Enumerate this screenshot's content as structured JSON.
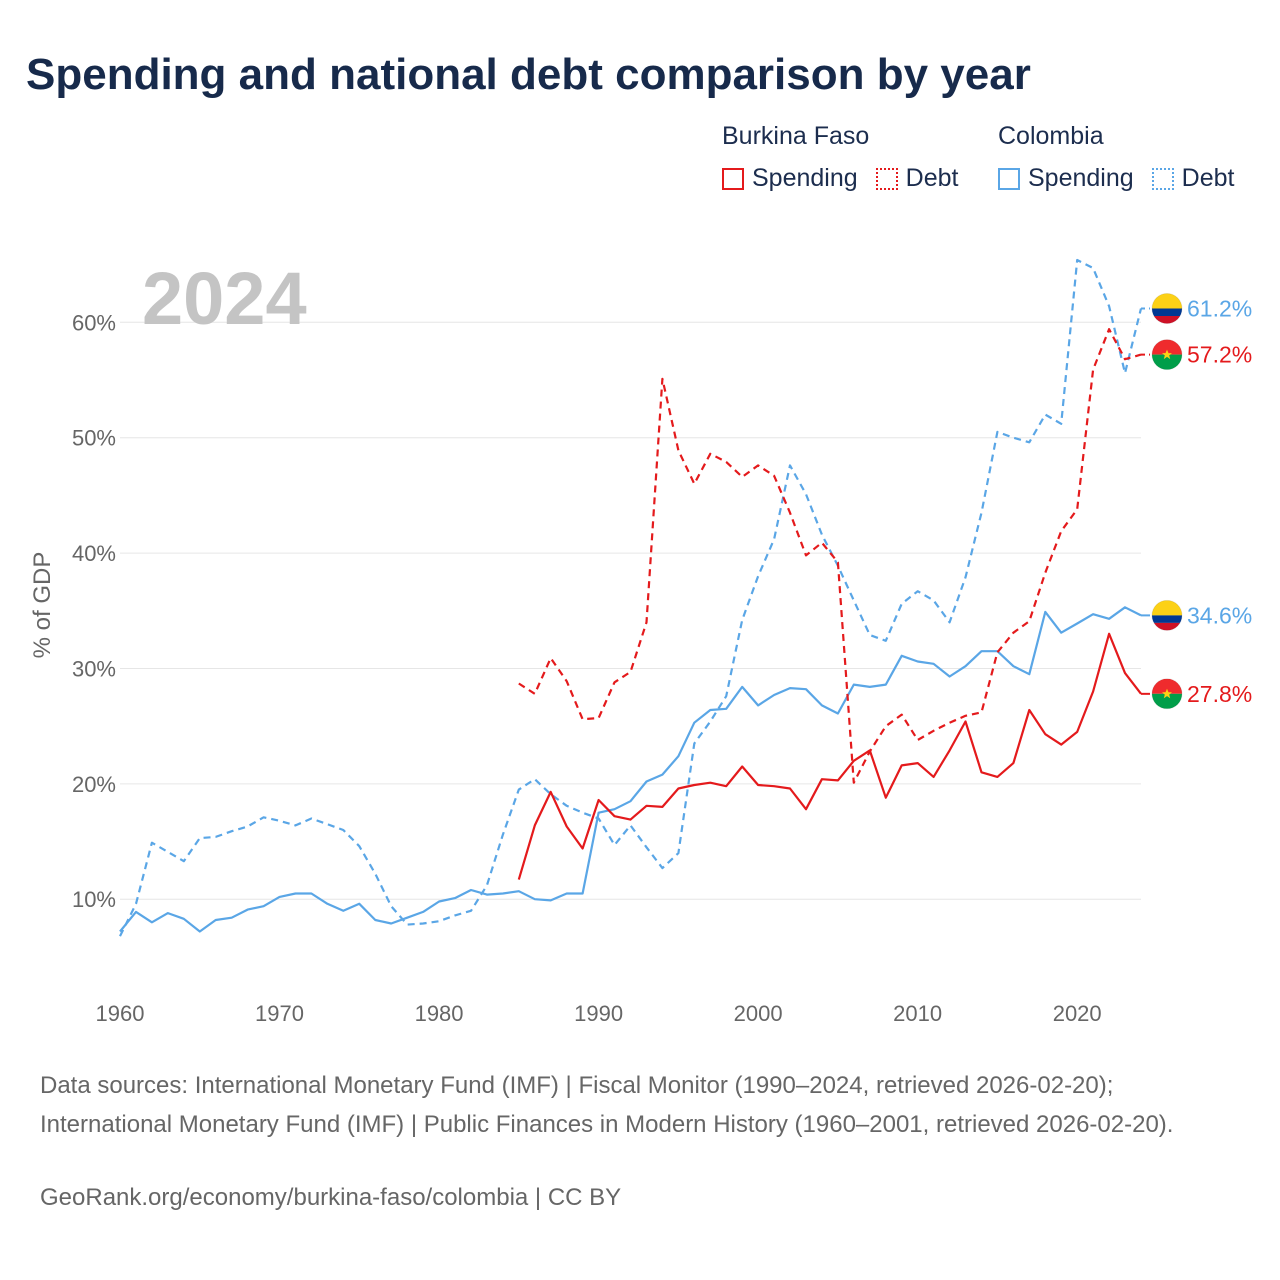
{
  "chart_data": {
    "type": "line",
    "title": "Spending and national debt comparison by year",
    "year_label": "2024",
    "ylabel": "% of GDP",
    "xlim": [
      1960,
      2024
    ],
    "ylim": [
      3,
      68
    ],
    "x_ticks": [
      1960,
      1970,
      1980,
      1990,
      2000,
      2010,
      2020
    ],
    "y_ticks": [
      10,
      20,
      30,
      40,
      50,
      60
    ],
    "y_tick_labels": [
      "10%",
      "20%",
      "30%",
      "40%",
      "50%",
      "60%"
    ],
    "legend": {
      "groups": [
        {
          "name": "Burkina Faso",
          "spending_label": "Spending",
          "debt_label": "Debt"
        },
        {
          "name": "Colombia",
          "spending_label": "Spending",
          "debt_label": "Debt"
        }
      ]
    },
    "series": [
      {
        "name": "Colombia Spending",
        "country": "Colombia",
        "kind": "spending",
        "color": "#5aa6e6",
        "dashed": false,
        "end_label": "34.6%",
        "x": [
          1960,
          1961,
          1962,
          1963,
          1964,
          1965,
          1966,
          1967,
          1968,
          1969,
          1970,
          1971,
          1972,
          1973,
          1974,
          1975,
          1976,
          1977,
          1978,
          1979,
          1980,
          1981,
          1982,
          1983,
          1984,
          1985,
          1986,
          1987,
          1988,
          1989,
          1990,
          1991,
          1992,
          1993,
          1994,
          1995,
          1996,
          1997,
          1998,
          1999,
          2000,
          2001,
          2002,
          2003,
          2004,
          2005,
          2006,
          2007,
          2008,
          2009,
          2010,
          2011,
          2012,
          2013,
          2014,
          2015,
          2016,
          2017,
          2018,
          2019,
          2020,
          2021,
          2022,
          2023,
          2024
        ],
        "values": [
          7.2,
          8.9,
          8.0,
          8.8,
          8.3,
          7.2,
          8.2,
          8.4,
          9.1,
          9.4,
          10.2,
          10.5,
          10.5,
          9.6,
          9.0,
          9.6,
          8.2,
          7.9,
          8.4,
          8.9,
          9.8,
          10.1,
          10.8,
          10.4,
          10.5,
          10.7,
          10.0,
          9.9,
          10.5,
          10.5,
          17.5,
          17.8,
          18.5,
          20.2,
          20.8,
          22.4,
          25.3,
          26.4,
          26.5,
          28.4,
          26.8,
          27.7,
          28.3,
          28.2,
          26.8,
          26.1,
          28.6,
          28.4,
          28.6,
          31.1,
          30.6,
          30.4,
          29.3,
          30.2,
          31.5,
          31.5,
          30.2,
          29.5,
          34.9,
          33.1,
          33.9,
          34.7,
          34.3,
          35.3,
          34.6
        ]
      },
      {
        "name": "Colombia Debt",
        "country": "Colombia",
        "kind": "debt",
        "color": "#5aa6e6",
        "dashed": true,
        "end_label": "61.2%",
        "x": [
          1960,
          1961,
          1962,
          1963,
          1964,
          1965,
          1966,
          1967,
          1968,
          1969,
          1970,
          1971,
          1972,
          1973,
          1974,
          1975,
          1976,
          1977,
          1978,
          1979,
          1980,
          1981,
          1982,
          1983,
          1984,
          1985,
          1986,
          1987,
          1988,
          1989,
          1990,
          1991,
          1992,
          1993,
          1994,
          1995,
          1996,
          1997,
          1998,
          1999,
          2000,
          2001,
          2002,
          2003,
          2004,
          2005,
          2006,
          2007,
          2008,
          2009,
          2010,
          2011,
          2012,
          2013,
          2014,
          2015,
          2016,
          2017,
          2018,
          2019,
          2020,
          2021,
          2022,
          2023,
          2024
        ],
        "values": [
          6.8,
          9.6,
          14.9,
          14.1,
          13.3,
          15.3,
          15.4,
          15.9,
          16.3,
          17.1,
          16.8,
          16.4,
          17.0,
          16.5,
          16.0,
          14.6,
          12.2,
          9.4,
          7.8,
          7.9,
          8.1,
          8.6,
          9.0,
          11.2,
          15.6,
          19.5,
          20.4,
          19.1,
          18.1,
          17.5,
          17.0,
          14.7,
          16.4,
          14.5,
          12.7,
          14.0,
          23.5,
          25.4,
          27.6,
          34.2,
          38.0,
          41.2,
          47.6,
          45.1,
          41.6,
          38.9,
          35.9,
          32.9,
          32.4,
          35.6,
          36.7,
          35.9,
          34.0,
          37.9,
          43.5,
          50.5,
          50.0,
          49.6,
          52.0,
          51.2,
          65.4,
          64.7,
          61.4,
          55.6,
          61.2
        ]
      },
      {
        "name": "Burkina Faso Spending",
        "country": "Burkina Faso",
        "kind": "spending",
        "color": "#e41a1c",
        "dashed": false,
        "end_label": "27.8%",
        "x": [
          1985,
          1986,
          1987,
          1988,
          1989,
          1990,
          1991,
          1992,
          1993,
          1994,
          1995,
          1996,
          1997,
          1998,
          1999,
          2000,
          2001,
          2002,
          2003,
          2004,
          2005,
          2006,
          2007,
          2008,
          2009,
          2010,
          2011,
          2012,
          2013,
          2014,
          2015,
          2016,
          2017,
          2018,
          2019,
          2020,
          2021,
          2022,
          2023,
          2024
        ],
        "values": [
          11.7,
          16.4,
          19.3,
          16.3,
          14.4,
          18.6,
          17.2,
          16.9,
          18.1,
          18.0,
          19.6,
          19.9,
          20.1,
          19.8,
          21.5,
          19.9,
          19.8,
          19.6,
          17.8,
          20.4,
          20.3,
          22.0,
          22.9,
          18.8,
          21.6,
          21.8,
          20.6,
          22.9,
          25.4,
          21.0,
          20.6,
          21.8,
          26.4,
          24.3,
          23.4,
          24.5,
          28.0,
          33.0,
          29.6,
          27.8
        ]
      },
      {
        "name": "Burkina Faso Debt",
        "country": "Burkina Faso",
        "kind": "debt",
        "color": "#e41a1c",
        "dashed": true,
        "end_label": "57.2%",
        "x": [
          1985,
          1986,
          1987,
          1988,
          1989,
          1990,
          1991,
          1992,
          1993,
          1994,
          1995,
          1996,
          1997,
          1998,
          1999,
          2000,
          2001,
          2002,
          2003,
          2004,
          2005,
          2006,
          2007,
          2008,
          2009,
          2010,
          2011,
          2012,
          2013,
          2014,
          2015,
          2016,
          2017,
          2018,
          2019,
          2020,
          2021,
          2022,
          2023,
          2024
        ],
        "values": [
          28.7,
          27.8,
          30.9,
          28.9,
          25.6,
          25.7,
          28.8,
          29.7,
          34.0,
          55.1,
          48.9,
          46.0,
          48.6,
          47.9,
          46.6,
          47.6,
          46.7,
          43.5,
          39.8,
          40.9,
          39.2,
          20.1,
          22.8,
          25.0,
          26.0,
          23.8,
          24.6,
          25.3,
          25.9,
          26.2,
          31.4,
          33.1,
          34.1,
          38.3,
          41.9,
          43.8,
          55.9,
          59.4,
          56.8,
          57.2
        ]
      }
    ]
  },
  "footer": {
    "sources": "Data sources: International Monetary Fund (IMF) | Fiscal Monitor (1990–2024, retrieved 2026-02-20); International Monetary Fund (IMF) | Public Finances in Modern History (1960–2001, retrieved 2026-02-20).",
    "credit": "GeoRank.org/economy/burkina-faso/colombia | CC BY"
  },
  "colors": {
    "burkina_faso": "#e41a1c",
    "colombia": "#5aa6e6",
    "title": "#172a4b",
    "axis_text": "#666666",
    "grid": "#e6e6e6",
    "year_watermark": "#c4c4c4"
  },
  "icons": {
    "colombia": "colombia-flag-icon",
    "burkina_faso": "burkina-faso-flag-icon"
  }
}
